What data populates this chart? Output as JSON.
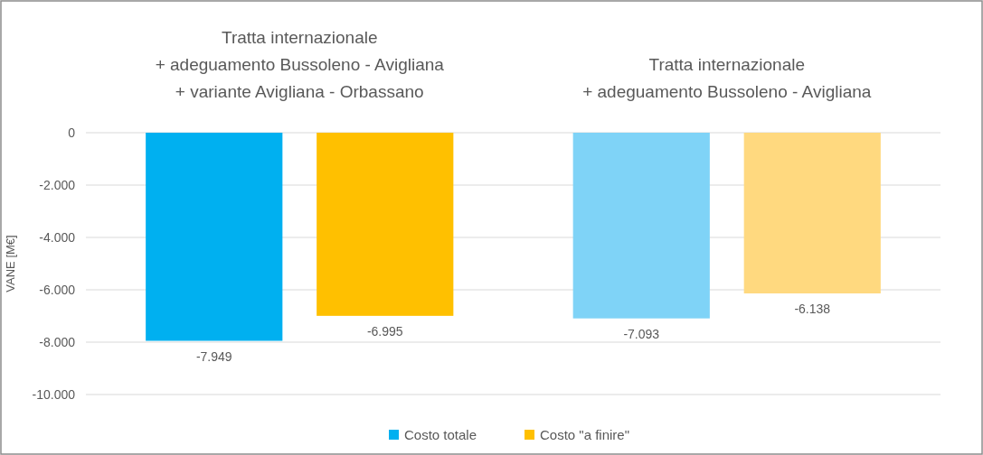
{
  "chart_data": {
    "type": "bar",
    "ylabel": "VANE [M€]",
    "categories": [
      "Tratta internazionale\n+ adeguamento Bussoleno - Avigliana\n+ variante Avigliana - Orbassano",
      "Tratta internazionale\n+ adeguamento Bussoleno - Avigliana"
    ],
    "series": [
      {
        "name": "Costo totale",
        "color": "#00b0f0",
        "colors": [
          "#00b0f0",
          "#7fd3f7"
        ],
        "values": [
          -7949,
          -7093
        ],
        "value_labels": [
          "-7.949",
          "-7.093"
        ]
      },
      {
        "name": "Costo \"a finire\"",
        "color": "#ffc000",
        "colors": [
          "#ffc000",
          "#ffd97f"
        ],
        "values": [
          -6995,
          -6138
        ],
        "value_labels": [
          "-6.995",
          "-6.138"
        ]
      }
    ],
    "ylim": [
      -10000,
      0
    ],
    "yticks": [
      0,
      {
        "value": -2000,
        "label": "-2.000"
      },
      {
        "value": -4000,
        "label": "-4.000"
      },
      {
        "value": -6000,
        "label": "-6.000"
      },
      {
        "value": -8000,
        "label": "-8.000"
      },
      {
        "value": -10000,
        "label": "-10.000"
      }
    ],
    "grid": "y",
    "legend": "bottom"
  }
}
